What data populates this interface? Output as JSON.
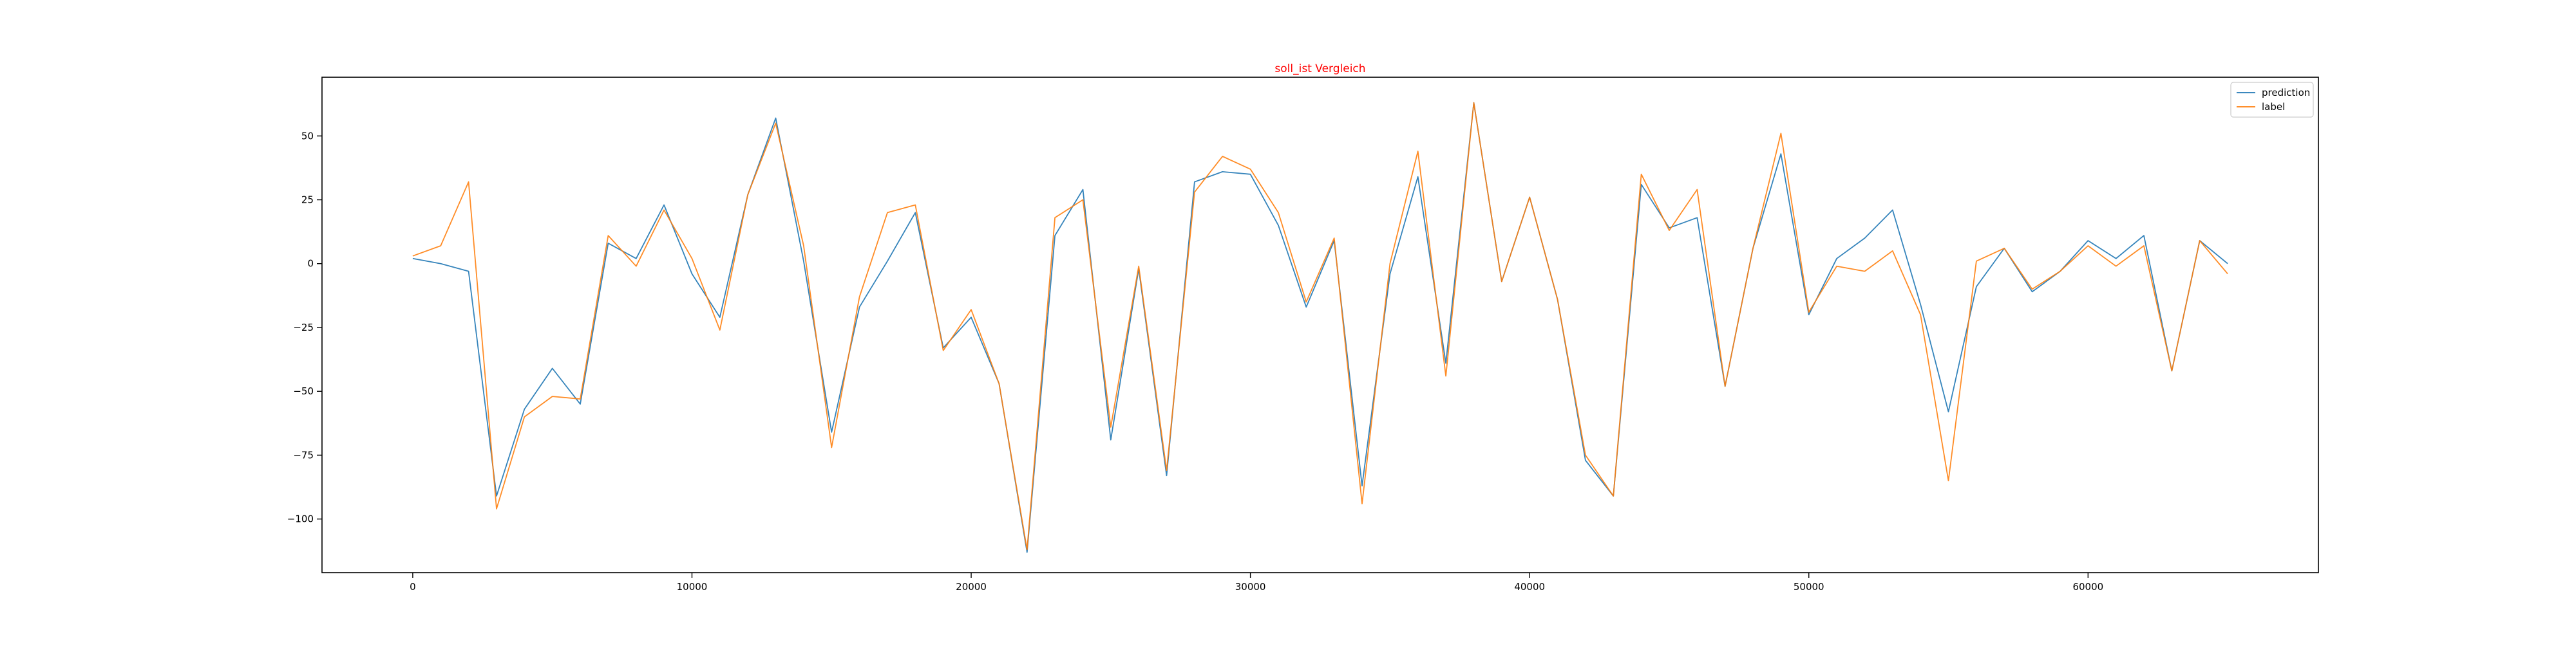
{
  "chart_data": {
    "type": "line",
    "title": "soll_ist Vergleich",
    "title_color": "#ff0000",
    "xlabel": "",
    "ylabel": "",
    "xlim": [
      -3250,
      68250
    ],
    "ylim": [
      -121,
      73
    ],
    "x_ticks": [
      0,
      10000,
      20000,
      30000,
      40000,
      50000,
      60000
    ],
    "y_ticks": [
      50,
      25,
      0,
      -25,
      -50,
      -75,
      -100
    ],
    "legend_position": "top-right",
    "grid": false,
    "x": [
      0,
      1000,
      2000,
      3000,
      4000,
      5000,
      6000,
      7000,
      8000,
      9000,
      10000,
      11000,
      12000,
      13000,
      14000,
      15000,
      16000,
      17000,
      18000,
      19000,
      20000,
      21000,
      22000,
      23000,
      24000,
      25000,
      26000,
      27000,
      28000,
      29000,
      30000,
      31000,
      32000,
      33000,
      34000,
      35000,
      36000,
      37000,
      38000,
      39000,
      40000,
      41000,
      42000,
      43000,
      44000,
      45000,
      46000,
      47000,
      48000,
      49000,
      50000,
      51000,
      52000,
      53000,
      54000,
      55000,
      56000,
      57000,
      58000,
      59000,
      60000,
      61000,
      62000,
      63000,
      64000,
      65000
    ],
    "series": [
      {
        "name": "prediction",
        "color": "#1f77b4",
        "values": [
          2,
          0,
          -3,
          -91,
          -57,
          -41,
          -55,
          8,
          2,
          23,
          -4,
          -21,
          27,
          57,
          1,
          -66,
          -17,
          1,
          20,
          -33,
          -21,
          -47,
          -113,
          11,
          29,
          -69,
          -2,
          -83,
          32,
          36,
          35,
          15,
          -17,
          9,
          -87,
          -4,
          34,
          -39,
          63,
          -7,
          26,
          -14,
          -77,
          -91,
          31,
          14,
          18,
          -48,
          6,
          43,
          -20,
          2,
          10,
          21,
          -16,
          -58,
          -9,
          6,
          -11,
          -3,
          9,
          2,
          11,
          -42,
          9,
          0
        ]
      },
      {
        "name": "label",
        "color": "#ff7f0e",
        "values": [
          3,
          7,
          32,
          -96,
          -60,
          -52,
          -53,
          11,
          -1,
          21,
          2,
          -26,
          27,
          55,
          7,
          -72,
          -13,
          20,
          23,
          -34,
          -18,
          -47,
          -112,
          18,
          25,
          -64,
          -1,
          -81,
          28,
          42,
          37,
          20,
          -15,
          10,
          -94,
          0,
          44,
          -44,
          63,
          -7,
          26,
          -14,
          -75,
          -91,
          35,
          13,
          29,
          -48,
          6,
          51,
          -19,
          -1,
          -3,
          5,
          -20,
          -85,
          1,
          6,
          -10,
          -3,
          7,
          -1,
          7,
          -42,
          9,
          -4
        ]
      }
    ]
  }
}
